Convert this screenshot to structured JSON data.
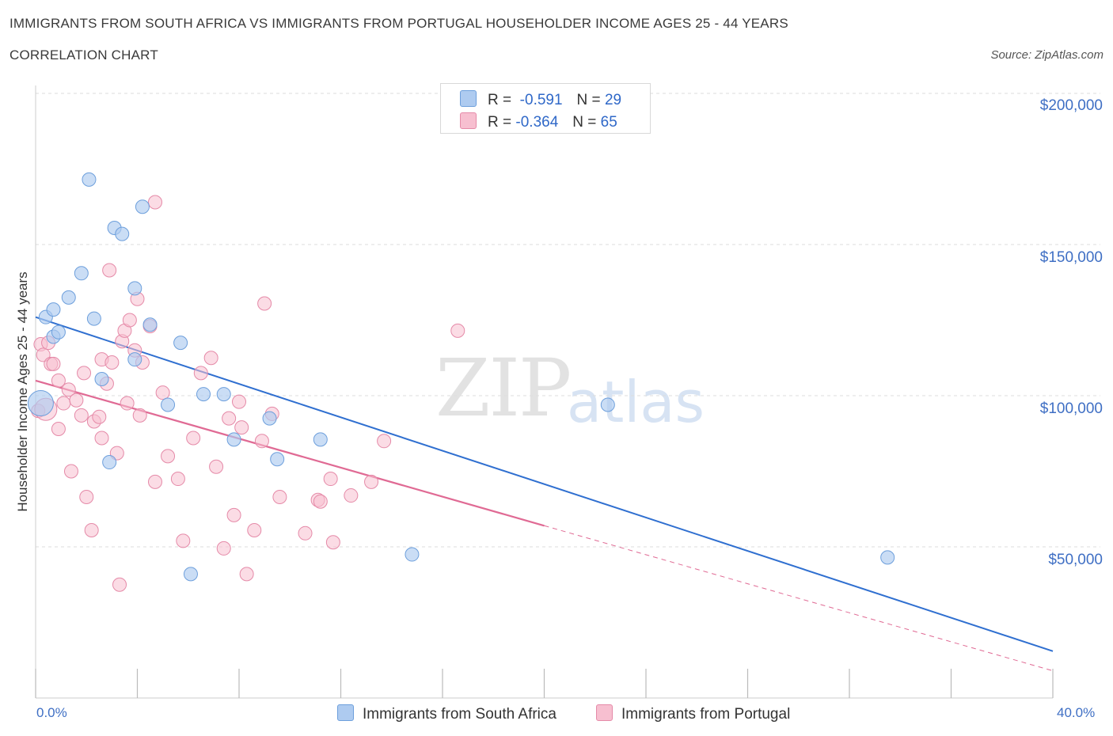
{
  "title": "IMMIGRANTS FROM SOUTH AFRICA VS IMMIGRANTS FROM PORTUGAL HOUSEHOLDER INCOME AGES 25 - 44 YEARS",
  "subtitle": "CORRELATION CHART",
  "source": "Source: ZipAtlas.com",
  "watermark": {
    "zip": "ZIP",
    "atlas": "atlas"
  },
  "legend": {
    "rows": [
      {
        "r_label": "R =",
        "r_value": "-0.591",
        "n_label": "N =",
        "n_value": "29",
        "color": "#aecbf0"
      },
      {
        "r_label": "R =",
        "r_value": "-0.364",
        "n_label": "N =",
        "n_value": "65",
        "color": "#f7bfd0"
      }
    ]
  },
  "bottom_legend": [
    {
      "label": "Immigrants from South Africa",
      "color": "#aecbf0"
    },
    {
      "label": "Immigrants from Portugal",
      "color": "#f7bfd0"
    }
  ],
  "colors": {
    "south_africa_fill": "#aecbf0",
    "south_africa_stroke": "#6d9fdc",
    "south_africa_line": "#2f6fd0",
    "portugal_fill": "#f7bfd0",
    "portugal_stroke": "#e58aa8",
    "portugal_line": "#e06a94",
    "grid": "#dddddd",
    "axis_text": "#3f6fc4"
  },
  "chart_data": {
    "type": "scatter",
    "xlabel": "",
    "ylabel": "Householder Income Ages 25 - 44 years",
    "xlim": [
      0,
      40
    ],
    "ylim": [
      0,
      200000
    ],
    "x_tick_labels": [
      "0.0%",
      "40.0%"
    ],
    "y_tick_labels": [
      "$200,000",
      "$150,000",
      "$100,000",
      "$50,000"
    ],
    "y_ticks": [
      200000,
      150000,
      100000,
      50000
    ],
    "grid": true,
    "legend_position": "top-center",
    "series": [
      {
        "name": "Immigrants from South Africa",
        "points": [
          [
            0.2,
            97500
          ],
          [
            0.4,
            126000
          ],
          [
            0.7,
            128500
          ],
          [
            0.7,
            119500
          ],
          [
            0.9,
            121000
          ],
          [
            1.3,
            132500
          ],
          [
            1.8,
            140500
          ],
          [
            2.1,
            171500
          ],
          [
            2.3,
            125500
          ],
          [
            2.6,
            105500
          ],
          [
            2.9,
            78000
          ],
          [
            3.1,
            155500
          ],
          [
            3.4,
            153500
          ],
          [
            3.9,
            135500
          ],
          [
            3.9,
            112000
          ],
          [
            4.2,
            162500
          ],
          [
            4.5,
            123500
          ],
          [
            5.2,
            97000
          ],
          [
            5.7,
            117500
          ],
          [
            6.1,
            41000
          ],
          [
            6.6,
            100500
          ],
          [
            7.4,
            100500
          ],
          [
            7.8,
            85500
          ],
          [
            9.2,
            92500
          ],
          [
            9.5,
            79000
          ],
          [
            11.2,
            85500
          ],
          [
            14.8,
            47500
          ],
          [
            22.5,
            97000
          ],
          [
            33.5,
            46500
          ]
        ],
        "trend": {
          "x": [
            0.0,
            40.0
          ],
          "y": [
            126000,
            15500
          ]
        }
      },
      {
        "name": "Immigrants from Portugal",
        "points": [
          [
            0.1,
            95000
          ],
          [
            0.2,
            117000
          ],
          [
            0.3,
            113500
          ],
          [
            0.5,
            117500
          ],
          [
            0.6,
            110500
          ],
          [
            0.7,
            110500
          ],
          [
            0.9,
            105000
          ],
          [
            0.9,
            89000
          ],
          [
            1.1,
            97500
          ],
          [
            1.3,
            102000
          ],
          [
            1.4,
            75000
          ],
          [
            1.6,
            98500
          ],
          [
            1.8,
            93500
          ],
          [
            1.9,
            107500
          ],
          [
            2.0,
            66500
          ],
          [
            2.2,
            55500
          ],
          [
            2.3,
            91500
          ],
          [
            2.5,
            93000
          ],
          [
            2.6,
            112000
          ],
          [
            2.6,
            86000
          ],
          [
            2.8,
            104000
          ],
          [
            2.9,
            141500
          ],
          [
            3.0,
            111000
          ],
          [
            3.2,
            81000
          ],
          [
            3.3,
            37500
          ],
          [
            3.4,
            118000
          ],
          [
            3.5,
            121500
          ],
          [
            3.6,
            97500
          ],
          [
            3.7,
            125000
          ],
          [
            3.9,
            115000
          ],
          [
            4.0,
            132000
          ],
          [
            4.2,
            111000
          ],
          [
            4.1,
            93500
          ],
          [
            4.5,
            123000
          ],
          [
            4.7,
            71500
          ],
          [
            4.7,
            164000
          ],
          [
            5.0,
            101000
          ],
          [
            5.2,
            80000
          ],
          [
            5.6,
            72500
          ],
          [
            5.8,
            52000
          ],
          [
            6.2,
            86000
          ],
          [
            6.5,
            107500
          ],
          [
            6.9,
            112500
          ],
          [
            7.1,
            76500
          ],
          [
            7.4,
            49500
          ],
          [
            7.6,
            92500
          ],
          [
            7.8,
            60500
          ],
          [
            8.0,
            98000
          ],
          [
            8.1,
            89500
          ],
          [
            8.3,
            41000
          ],
          [
            8.6,
            55500
          ],
          [
            8.9,
            85000
          ],
          [
            9.0,
            130500
          ],
          [
            9.3,
            94000
          ],
          [
            9.6,
            66500
          ],
          [
            10.6,
            54500
          ],
          [
            11.1,
            65500
          ],
          [
            11.2,
            65000
          ],
          [
            11.6,
            72500
          ],
          [
            11.7,
            51500
          ],
          [
            12.4,
            67000
          ],
          [
            13.2,
            71500
          ],
          [
            13.7,
            85000
          ],
          [
            16.6,
            121500
          ],
          [
            0.4,
            95500
          ]
        ],
        "trend": {
          "x": [
            0.0,
            20.0
          ],
          "y": [
            105000,
            57000
          ]
        },
        "trend_dashed": {
          "x": [
            20.0,
            40.0
          ],
          "y": [
            57000,
            9000
          ]
        }
      }
    ]
  }
}
